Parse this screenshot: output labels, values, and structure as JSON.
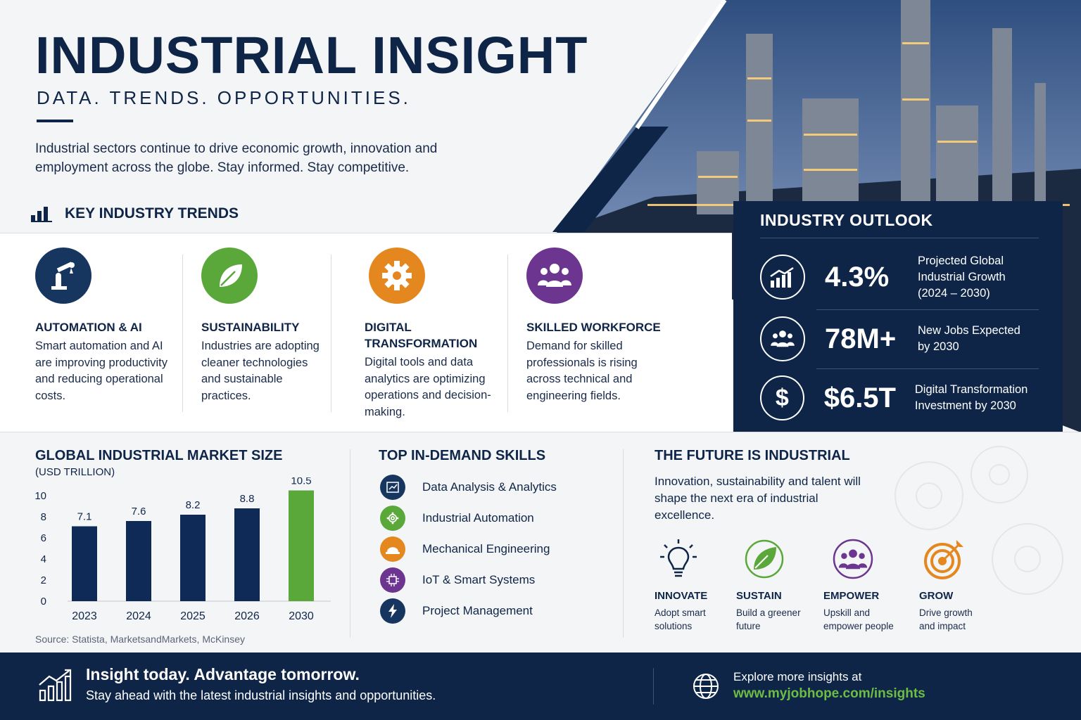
{
  "hero": {
    "title": "INDUSTRIAL INSIGHT",
    "subtitle": "DATA. TRENDS. OPPORTUNITIES.",
    "intro": "Industrial sectors continue to drive economic growth, innovation and employment across the globe. Stay informed. Stay competitive."
  },
  "trends": {
    "heading": "KEY INDUSTRY TRENDS",
    "items": [
      {
        "title": "AUTOMATION & AI",
        "text": "Smart automation and AI are improving productivity and reducing operational costs.",
        "color": "#16365f",
        "icon": "robot-arm-icon"
      },
      {
        "title": "SUSTAINABILITY",
        "text": "Industries are adopting cleaner technologies and sustainable practices.",
        "color": "#5aa83a",
        "icon": "leaf-icon"
      },
      {
        "title": "DIGITAL TRANSFORMATION",
        "text": "Digital tools and data analytics are optimizing operations and decision-making.",
        "color": "#e5871f",
        "icon": "gear-icon"
      },
      {
        "title": "SKILLED WORKFORCE",
        "text": "Demand for skilled professionals is rising across technical and engineering fields.",
        "color": "#6b3590",
        "icon": "people-icon"
      }
    ]
  },
  "outlook": {
    "heading": "INDUSTRY OUTLOOK",
    "stats": [
      {
        "value": "4.3%",
        "desc": "Projected Global Industrial Growth (2024 – 2030)",
        "icon": "growth-chart-icon"
      },
      {
        "value": "78M+",
        "desc": "New Jobs Expected by 2030",
        "icon": "people-icon"
      },
      {
        "value": "$6.5T",
        "desc": "Digital Transformation Investment by 2030",
        "icon": "dollar-icon"
      }
    ]
  },
  "market": {
    "heading": "GLOBAL INDUSTRIAL MARKET SIZE",
    "unit": "(USD TRILLION)",
    "source": "Source: Statista, MarketsandMarkets, McKinsey"
  },
  "chart_data": {
    "type": "bar",
    "categories": [
      "2023",
      "2024",
      "2025",
      "2026",
      "2030"
    ],
    "values": [
      7.1,
      7.6,
      8.2,
      8.8,
      10.5
    ],
    "value_labels": [
      "7.1",
      "7.6",
      "8.2",
      "8.8",
      "10.5"
    ],
    "title": "GLOBAL INDUSTRIAL MARKET SIZE",
    "ylabel": "(USD TRILLION)",
    "yticks": [
      "0",
      "2",
      "4",
      "6",
      "8",
      "10"
    ],
    "ylim": [
      0,
      10
    ],
    "grid": false,
    "colors": [
      "#0f2a57",
      "#0f2a57",
      "#0f2a57",
      "#0f2a57",
      "#5aa83a"
    ]
  },
  "skills": {
    "heading": "TOP IN-DEMAND SKILLS",
    "items": [
      {
        "label": "Data Analysis & Analytics",
        "color": "#16365f",
        "icon": "chart-icon"
      },
      {
        "label": "Industrial Automation",
        "color": "#5aa83a",
        "icon": "gear-icon"
      },
      {
        "label": "Mechanical Engineering",
        "color": "#e5871f",
        "icon": "hard-hat-icon"
      },
      {
        "label": "IoT & Smart Systems",
        "color": "#6b3590",
        "icon": "chip-icon"
      },
      {
        "label": "Project Management",
        "color": "#16365f",
        "icon": "lightning-icon"
      }
    ]
  },
  "future": {
    "heading": "THE FUTURE IS INDUSTRIAL",
    "text": "Innovation, sustainability and talent will shape the next era of industrial excellence.",
    "pillars": [
      {
        "title": "INNOVATE",
        "text": "Adopt smart solutions",
        "icon": "lightbulb-icon"
      },
      {
        "title": "SUSTAIN",
        "text": "Build a greener future",
        "icon": "leaf-icon"
      },
      {
        "title": "EMPOWER",
        "text": "Upskill and empower people",
        "icon": "people-icon"
      },
      {
        "title": "GROW",
        "text": "Drive growth and impact",
        "icon": "target-icon"
      }
    ]
  },
  "footer": {
    "tagline": "Insight today. Advantage tomorrow.",
    "subline": "Stay ahead with the latest industrial insights and opportunities.",
    "explore": "Explore more insights at",
    "url": "www.myjobhope.com/insights"
  }
}
